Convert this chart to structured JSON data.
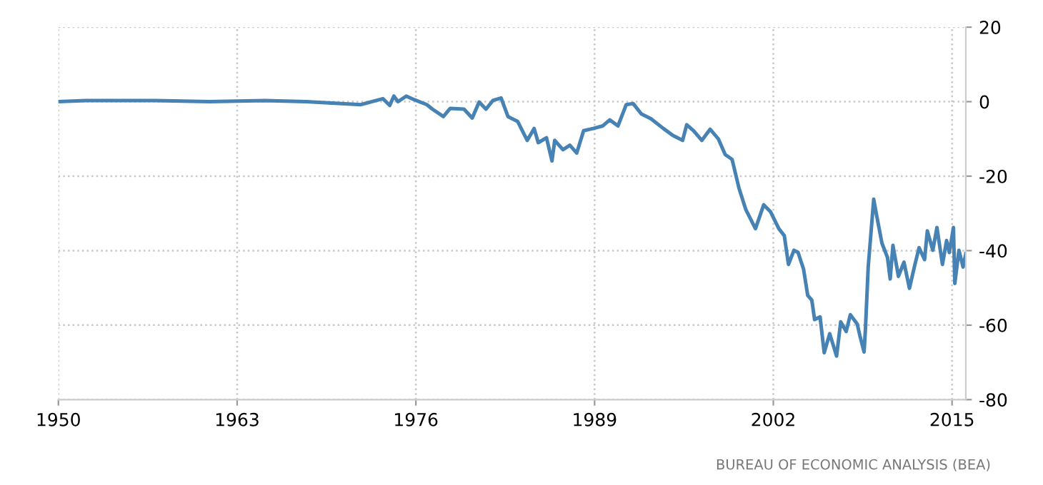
{
  "chart_data": {
    "type": "line",
    "x": [
      1950,
      1952,
      1957,
      1961,
      1965,
      1968,
      1972,
      1973.6,
      1974.1,
      1974.4,
      1974.7,
      1975.3,
      1975.9,
      1976.8,
      1977.2,
      1978.0,
      1978.5,
      1979.5,
      1980.1,
      1980.6,
      1981.1,
      1981.6,
      1982.2,
      1982.7,
      1983.4,
      1984.1,
      1984.6,
      1984.9,
      1985.5,
      1985.9,
      1986.1,
      1986.7,
      1987.2,
      1987.7,
      1988.2,
      1988.9,
      1989.6,
      1990.1,
      1990.7,
      1991.3,
      1991.8,
      1992.4,
      1993.1,
      1994.0,
      1994.7,
      1995.4,
      1995.7,
      1996.2,
      1996.8,
      1997.4,
      1998.0,
      1998.5,
      1999.0,
      1999.5,
      2000.0,
      2000.7,
      2001.3,
      2001.8,
      2002.4,
      2002.8,
      2003.1,
      2003.5,
      2003.8,
      2004.2,
      2004.5,
      2004.8,
      2005.0,
      2005.4,
      2005.7,
      2006.1,
      2006.6,
      2006.9,
      2007.3,
      2007.6,
      2008.1,
      2008.3,
      2008.6,
      2008.7,
      2008.9,
      2009.3,
      2009.5,
      2009.9,
      2010.3,
      2010.5,
      2010.7,
      2011.1,
      2011.5,
      2011.9,
      2012.3,
      2012.6,
      2013.0,
      2013.2,
      2013.6,
      2013.9,
      2014.3,
      2014.6,
      2014.8,
      2015.1,
      2015.2,
      2015.5,
      2015.8,
      2016.0
    ],
    "series": [
      {
        "color": "#4682b4",
        "values": [
          0,
          0.3,
          0.3,
          0,
          0.3,
          0,
          -0.8,
          0.8,
          -1,
          1.5,
          0,
          1.5,
          0.5,
          -0.8,
          -2,
          -4,
          -1.8,
          -2,
          -4.4,
          -0.1,
          -2,
          0.3,
          1,
          -4,
          -5.3,
          -10.4,
          -7.2,
          -11,
          -9.7,
          -15.9,
          -10.4,
          -12.9,
          -11.7,
          -13.8,
          -7.8,
          -7.2,
          -6.5,
          -4.9,
          -6.5,
          -0.8,
          -0.5,
          -3.3,
          -4.6,
          -7.2,
          -9.1,
          -10.4,
          -6.2,
          -7.8,
          -10.4,
          -7.4,
          -10,
          -14.2,
          -15.5,
          -23.2,
          -29,
          -34.1,
          -27.7,
          -29.6,
          -34.1,
          -36,
          -43.7,
          -39.9,
          -40.5,
          -45,
          -52,
          -53.3,
          -58.5,
          -57.8,
          -67.4,
          -62.3,
          -68.3,
          -59.1,
          -61.7,
          -57.2,
          -59.7,
          -62.9,
          -67.2,
          -61,
          -44.4,
          -26.2,
          -30.3,
          -38,
          -41.8,
          -47.6,
          -38.6,
          -46.9,
          -43.1,
          -50.1,
          -43.7,
          -39.2,
          -42.4,
          -34.7,
          -39.9,
          -33.8,
          -43.7,
          -37.3,
          -40.5,
          -33.8,
          -48.8,
          -39.9,
          -44.4,
          -40.8
        ]
      }
    ],
    "xlim": [
      1950,
      2016
    ],
    "xticks": [
      1950,
      1963,
      1976,
      1989,
      2002,
      2015
    ],
    "ylim": [
      -80,
      20
    ],
    "yticks": [
      -80,
      -60,
      -40,
      -20,
      0,
      20
    ],
    "grid": true,
    "line_style": "solid",
    "annotations": [
      "BUREAU OF ECONOMIC ANALYSIS (BEA)"
    ]
  }
}
